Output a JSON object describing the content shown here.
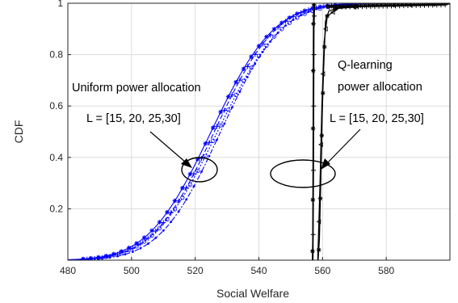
{
  "chart_data": {
    "type": "line",
    "title": "",
    "xlabel": "Social Welfare",
    "ylabel": "CDF",
    "xlim": [
      480,
      600
    ],
    "ylim": [
      0,
      1
    ],
    "grid": true,
    "x_ticks": [
      480,
      500,
      520,
      540,
      560,
      580
    ],
    "y_ticks": [
      0.2,
      0.4,
      0.6,
      0.8,
      1
    ],
    "x_tick_labels": [
      "480",
      "500",
      "520",
      "540",
      "560",
      "580"
    ],
    "y_tick_labels": [
      "0.2",
      "0.4",
      "0.6",
      "0.8",
      "1"
    ],
    "colors": {
      "uniform": "#0000ff",
      "qlearning": "#000000",
      "grid": "#dcdcdc",
      "axis": "#262626"
    },
    "uniform_group": {
      "mean": [
        525,
        526,
        527,
        528
      ],
      "sd": [
        15.5,
        15.2,
        15.8,
        15.0
      ],
      "dash": [
        "",
        "6,3",
        "2,2",
        "6,2,2,2"
      ],
      "marker": [
        "star",
        "plus",
        "circle",
        "dot"
      ]
    },
    "qlearning_group": {
      "series": [
        {
          "points": [
            [
              556.8,
              0
            ],
            [
              556.9,
              0.07
            ],
            [
              557.0,
              0.4
            ],
            [
              557.1,
              0.85
            ],
            [
              557.15,
              0.99
            ],
            [
              557.4,
              1.0
            ]
          ],
          "marker": "star"
        },
        {
          "points": [
            [
              557.0,
              0
            ],
            [
              557.1,
              0.2
            ],
            [
              557.2,
              0.5
            ],
            [
              557.3,
              0.9
            ],
            [
              557.5,
              1.0
            ]
          ],
          "marker": "plus"
        },
        {
          "points": [
            [
              558.6,
              0
            ],
            [
              559.0,
              0.08
            ],
            [
              559.6,
              0.4
            ],
            [
              559.9,
              0.57
            ],
            [
              560.3,
              0.73
            ],
            [
              560.9,
              0.93
            ],
            [
              562,
              0.97
            ],
            [
              566,
              0.985
            ],
            [
              575,
              0.99
            ],
            [
              590,
              0.995
            ],
            [
              600,
              0.998
            ]
          ],
          "marker": "star"
        },
        {
          "points": [
            [
              558.5,
              0
            ],
            [
              559.2,
              0.3
            ],
            [
              559.8,
              0.6
            ],
            [
              560.5,
              0.85
            ],
            [
              561.5,
              0.95
            ],
            [
              565,
              0.98
            ],
            [
              575,
              0.99
            ],
            [
              600,
              0.997
            ]
          ],
          "marker": "triangle"
        }
      ]
    },
    "annotations": {
      "uniform_label": "Uniform power allocation",
      "uniform_L": "L = [15, 20, 25,30]",
      "q_label_1": "Q-learning",
      "q_label_2": "power allocation",
      "q_L": "L = [15, 20, 25,30]"
    }
  }
}
